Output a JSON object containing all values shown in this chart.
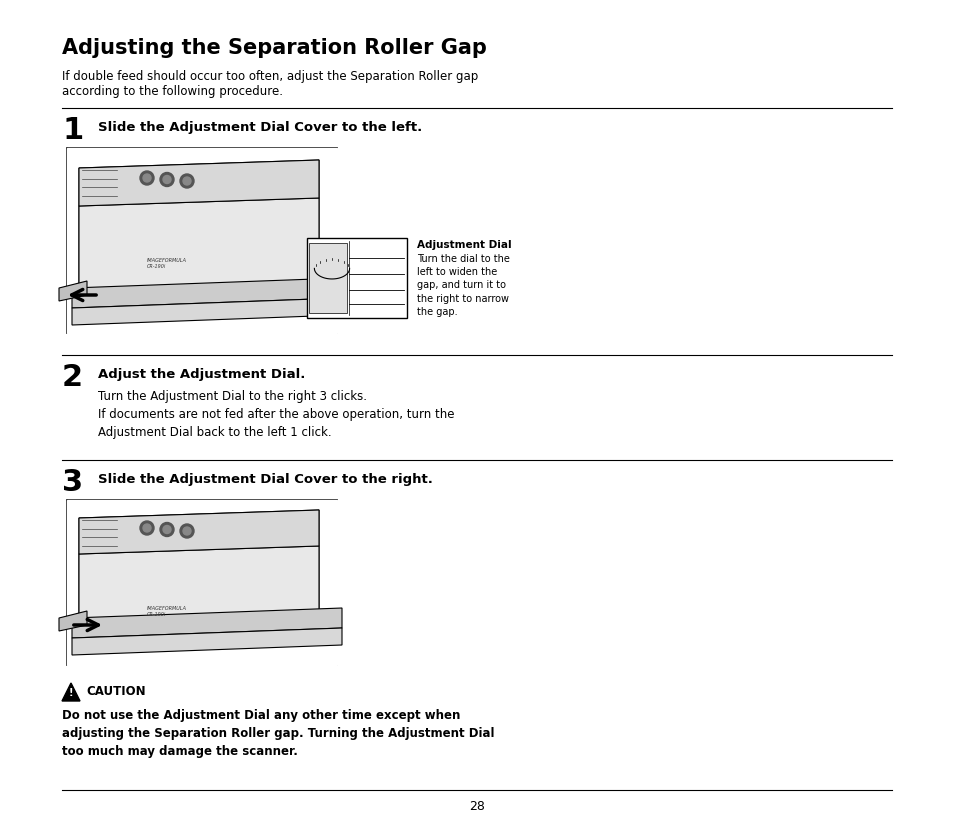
{
  "page_title": "Adjusting the Separation Roller Gap",
  "intro_text": "If double feed should occur too often, adjust the Separation Roller gap\naccording to the following procedure.",
  "step1_label": "1",
  "step1_heading": "Slide the Adjustment Dial Cover to the left.",
  "step1_callout_label": "Adjustment Dial",
  "step1_callout_text": "Turn the dial to the\nleft to widen the\ngap, and turn it to\nthe right to narrow\nthe gap.",
  "step2_label": "2",
  "step2_heading": "Adjust the Adjustment Dial.",
  "step2_text": "Turn the Adjustment Dial to the right 3 clicks.\nIf documents are not fed after the above operation, turn the\nAdjustment Dial back to the left 1 click.",
  "step3_label": "3",
  "step3_heading": "Slide the Adjustment Dial Cover to the right.",
  "caution_label": "CAUTION",
  "caution_text": "Do not use the Adjustment Dial any other time except when\nadjusting the Separation Roller gap. Turning the Adjustment Dial\ntoo much may damage the scanner.",
  "page_number": "28",
  "bg_color": "#ffffff",
  "text_color": "#000000"
}
